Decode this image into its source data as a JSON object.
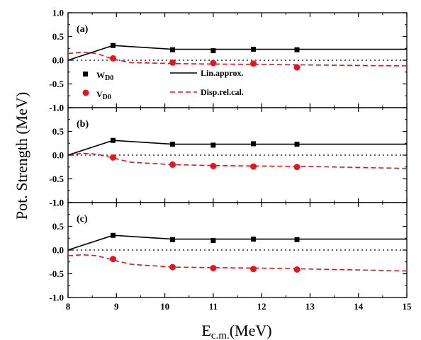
{
  "chart_data": {
    "type": "line",
    "ylabel": "Pot. Strength (MeV)",
    "xlabel_main": "E",
    "xlabel_sub": "c.m.",
    "xlabel_unit": "(MeV)",
    "xlim": [
      8,
      15
    ],
    "ylim": [
      -1.0,
      1.0
    ],
    "xticks": [
      "8",
      "9",
      "10",
      "11",
      "12",
      "13",
      "14",
      "15"
    ],
    "yticks": [
      "1.0",
      "0.5",
      "0.0",
      "-0.5",
      "-1.0"
    ],
    "legend": {
      "w_name": "W",
      "w_sub": "D0",
      "v_name": "V",
      "v_sub": "D0",
      "line_lin": "Lin.approx.",
      "line_disp": "Disp.rel.cal."
    },
    "colors": {
      "black": "#000000",
      "red": "#e8141b"
    },
    "panels": [
      {
        "label": "(a)",
        "W_D0_points": {
          "x": [
            8.93,
            10.16,
            11.0,
            11.83,
            12.73
          ],
          "y": [
            0.31,
            0.22,
            0.2,
            0.23,
            0.22
          ]
        },
        "V_D0_points": {
          "x": [
            8.93,
            10.16,
            11.0,
            11.83,
            12.73
          ],
          "y": [
            0.04,
            -0.05,
            -0.06,
            -0.07,
            -0.15
          ]
        },
        "lin_approx": {
          "x": [
            8.0,
            8.93,
            10.16,
            15.0
          ],
          "y": [
            0.0,
            0.31,
            0.23,
            0.23
          ]
        },
        "disp_rel_cal": {
          "x": [
            8.0,
            8.3,
            8.6,
            8.93,
            9.3,
            10.16,
            11.0,
            12.0,
            13.0,
            14.0,
            15.0
          ],
          "y": [
            0.14,
            0.17,
            0.14,
            0.02,
            -0.05,
            -0.07,
            -0.08,
            -0.09,
            -0.1,
            -0.11,
            -0.12
          ]
        }
      },
      {
        "label": "(b)",
        "W_D0_points": {
          "x": [
            8.93,
            10.16,
            11.0,
            11.83,
            12.73
          ],
          "y": [
            0.31,
            0.23,
            0.21,
            0.24,
            0.23
          ]
        },
        "V_D0_points": {
          "x": [
            8.93,
            10.16,
            11.0,
            11.83,
            12.73
          ],
          "y": [
            -0.05,
            -0.2,
            -0.23,
            -0.24,
            -0.25
          ]
        },
        "lin_approx": {
          "x": [
            8.0,
            8.93,
            10.16,
            15.0
          ],
          "y": [
            0.0,
            0.31,
            0.23,
            0.23
          ]
        },
        "disp_rel_cal": {
          "x": [
            8.0,
            8.3,
            8.6,
            8.93,
            9.3,
            10.16,
            11.0,
            12.0,
            13.0,
            14.0,
            15.0
          ],
          "y": [
            0.0,
            0.04,
            0.02,
            -0.06,
            -0.15,
            -0.2,
            -0.22,
            -0.23,
            -0.24,
            -0.26,
            -0.28
          ]
        }
      },
      {
        "label": "(c)",
        "W_D0_points": {
          "x": [
            8.93,
            10.16,
            11.0,
            11.83,
            12.73
          ],
          "y": [
            0.31,
            0.22,
            0.2,
            0.23,
            0.22
          ]
        },
        "V_D0_points": {
          "x": [
            8.93,
            10.16,
            11.0,
            11.83,
            12.73
          ],
          "y": [
            -0.19,
            -0.36,
            -0.38,
            -0.4,
            -0.41
          ]
        },
        "lin_approx": {
          "x": [
            8.0,
            8.93,
            10.16,
            15.0
          ],
          "y": [
            0.0,
            0.31,
            0.23,
            0.23
          ]
        },
        "disp_rel_cal": {
          "x": [
            8.0,
            8.3,
            8.6,
            8.93,
            9.3,
            10.16,
            11.0,
            12.0,
            13.0,
            14.0,
            15.0
          ],
          "y": [
            -0.12,
            -0.1,
            -0.12,
            -0.21,
            -0.3,
            -0.36,
            -0.37,
            -0.38,
            -0.4,
            -0.42,
            -0.44
          ]
        }
      }
    ]
  }
}
